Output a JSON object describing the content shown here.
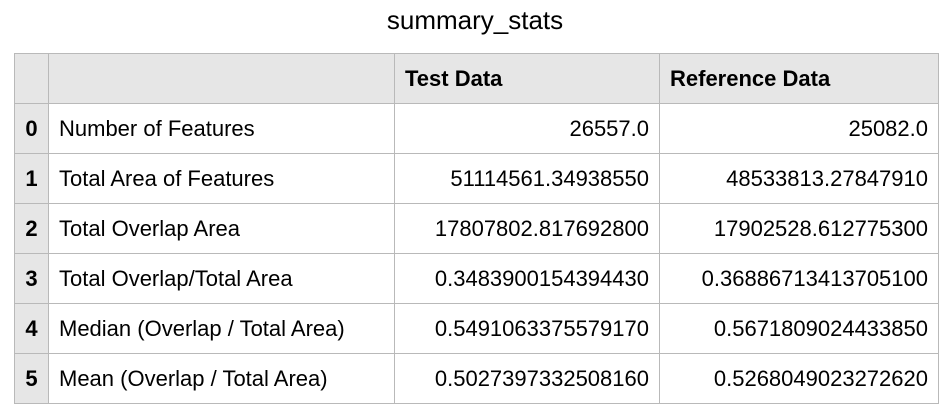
{
  "title": "summary_stats",
  "table": {
    "columns": [
      "",
      "Test Data",
      "Reference Data"
    ],
    "rows": [
      {
        "index": "0",
        "label": "Number of Features",
        "test": "26557.0",
        "reference": "25082.0"
      },
      {
        "index": "1",
        "label": "Total Area of Features",
        "test": "51114561.34938550",
        "reference": "48533813.27847910"
      },
      {
        "index": "2",
        "label": "Total Overlap Area",
        "test": "17807802.817692800",
        "reference": "17902528.612775300"
      },
      {
        "index": "3",
        "label": "Total Overlap/Total Area",
        "test": "0.3483900154394430",
        "reference": "0.36886713413705100"
      },
      {
        "index": "4",
        "label": "Median (Overlap / Total Area)",
        "test": "0.5491063375579170",
        "reference": "0.5671809024433850"
      },
      {
        "index": "5",
        "label": "Mean (Overlap / Total Area)",
        "test": "0.5027397332508160",
        "reference": "0.5268049023272620"
      }
    ]
  }
}
